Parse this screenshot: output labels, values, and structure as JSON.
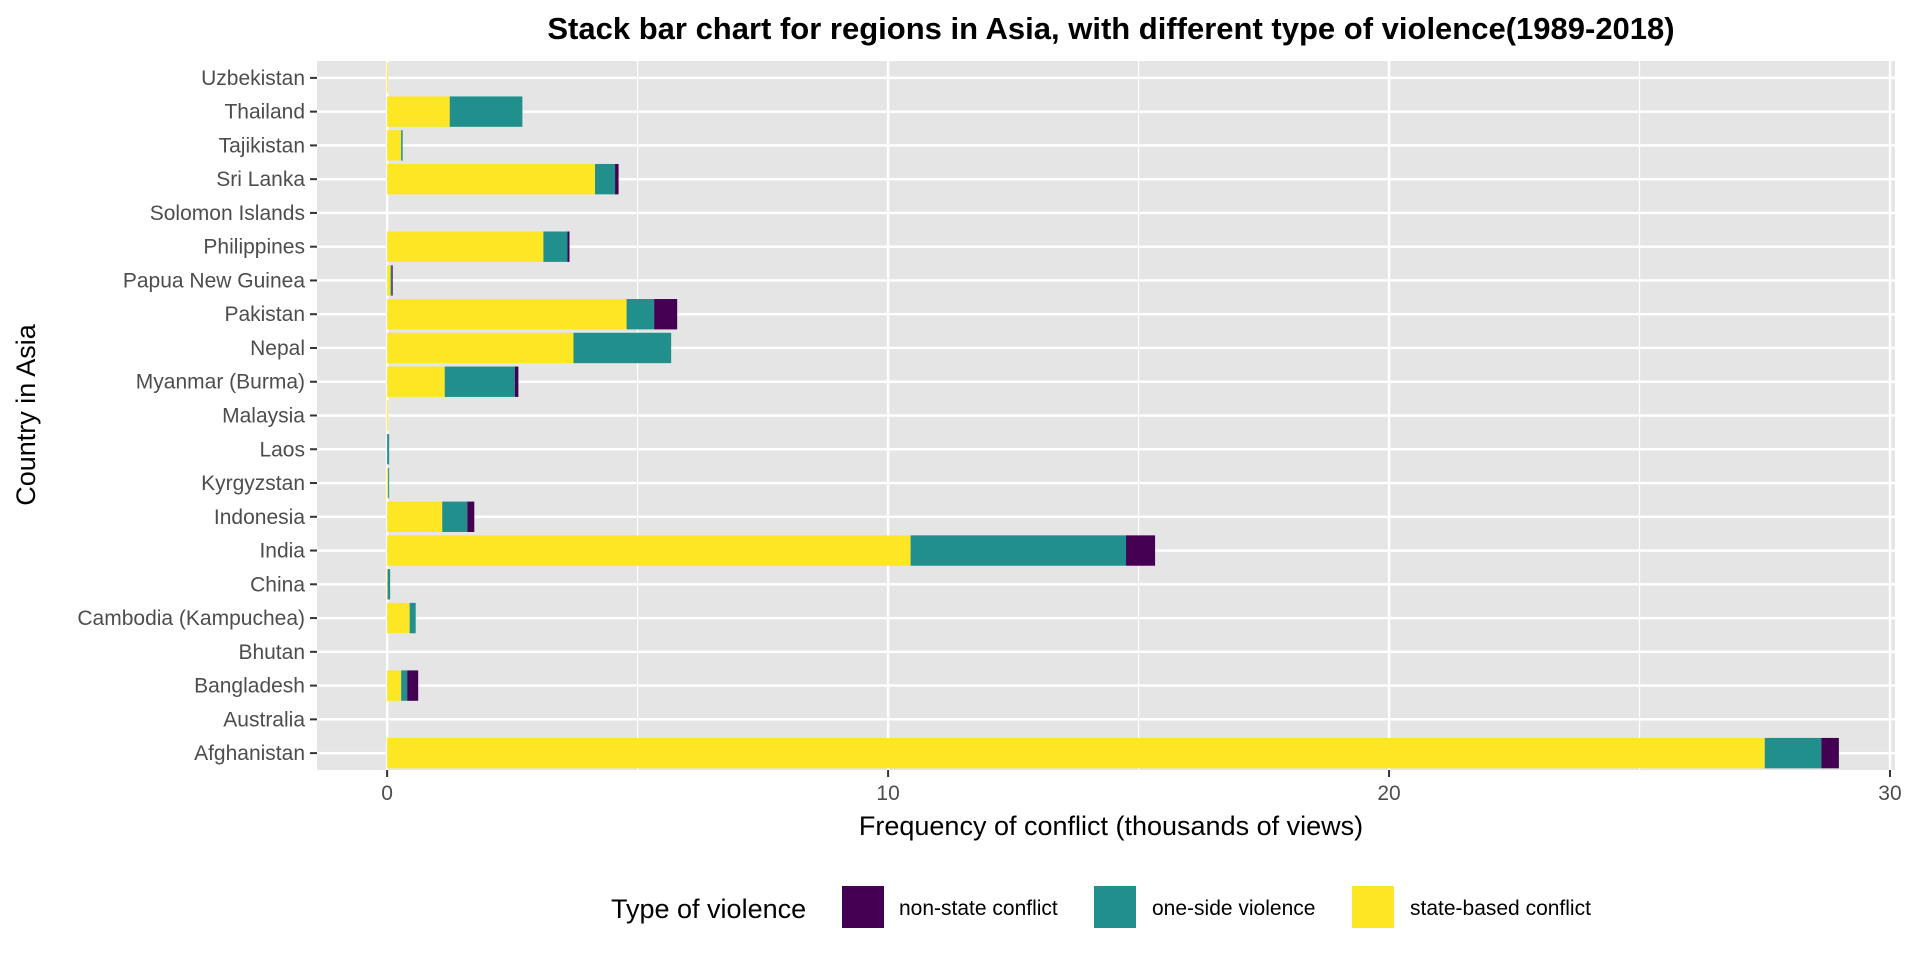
{
  "chart_data": {
    "type": "bar",
    "orientation": "horizontal",
    "stacked": true,
    "title": "Stack bar chart for regions in Asia, with different type of violence(1989-2018)",
    "xlabel": "Frequency of conflict (thousands of views)",
    "ylabel": "Country in Asia",
    "xlim": [
      -1.4,
      30.1
    ],
    "xticks": [
      0,
      10,
      20,
      30
    ],
    "grid": true,
    "legend": {
      "title": "Type of violence",
      "position": "bottom",
      "entries": [
        "non-state conflict",
        "one-side violence",
        "state-based conflict"
      ]
    },
    "categories": [
      "Afghanistan",
      "Australia",
      "Bangladesh",
      "Bhutan",
      "Cambodia (Kampuchea)",
      "China",
      "India",
      "Indonesia",
      "Kyrgyzstan",
      "Laos",
      "Malaysia",
      "Myanmar (Burma)",
      "Nepal",
      "Pakistan",
      "Papua New Guinea",
      "Philippines",
      "Solomon Islands",
      "Sri Lanka",
      "Tajikistan",
      "Thailand",
      "Uzbekistan"
    ],
    "series": [
      {
        "name": "state-based conflict",
        "color": "#FDE725",
        "values": [
          27.5,
          0.0,
          0.28,
          0.0,
          0.45,
          0.01,
          10.45,
          1.1,
          0.02,
          0.0,
          0.02,
          1.15,
          3.72,
          4.78,
          0.07,
          3.12,
          0.0,
          4.15,
          0.28,
          1.25,
          0.02
        ]
      },
      {
        "name": "one-side violence",
        "color": "#21908C",
        "values": [
          1.13,
          0.0,
          0.12,
          0.0,
          0.12,
          0.05,
          4.3,
          0.5,
          0.02,
          0.04,
          0.0,
          1.4,
          1.95,
          0.55,
          0.02,
          0.48,
          0.0,
          0.4,
          0.03,
          1.45,
          0.0
        ]
      },
      {
        "name": "non-state conflict",
        "color": "#440154",
        "values": [
          0.35,
          0.0,
          0.22,
          0.0,
          0.0,
          0.0,
          0.58,
          0.14,
          0.0,
          0.0,
          0.0,
          0.07,
          0.0,
          0.46,
          0.02,
          0.04,
          0.0,
          0.07,
          0.0,
          0.0,
          0.0
        ]
      }
    ]
  }
}
